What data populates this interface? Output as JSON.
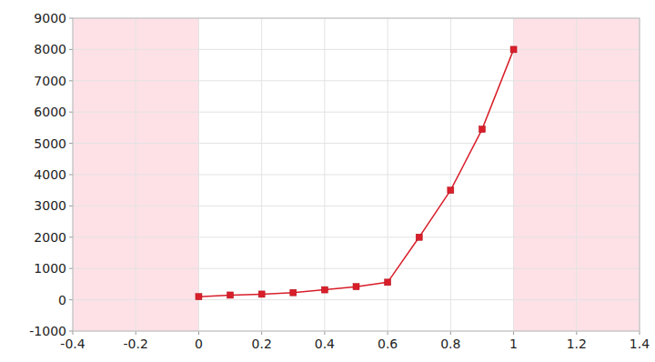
{
  "chart_data": {
    "type": "line",
    "x": [
      0,
      0.1,
      0.2,
      0.3,
      0.4,
      0.5,
      0.6,
      0.7,
      0.8,
      0.9,
      1
    ],
    "values": [
      100,
      150,
      180,
      230,
      320,
      420,
      560,
      2000,
      3500,
      5450,
      8000
    ],
    "color": "#d81e2a",
    "marker": "square",
    "xlim": [
      -0.4,
      1.4
    ],
    "xticks": [
      -0.4,
      -0.2,
      0,
      0.2,
      0.4,
      0.6,
      0.8,
      1,
      1.2,
      1.4
    ],
    "ylim": [
      -1000,
      9000
    ],
    "yticks": [
      -1000,
      0,
      1000,
      2000,
      3000,
      4000,
      5000,
      6000,
      7000,
      8000,
      9000
    ],
    "grid": true
  }
}
